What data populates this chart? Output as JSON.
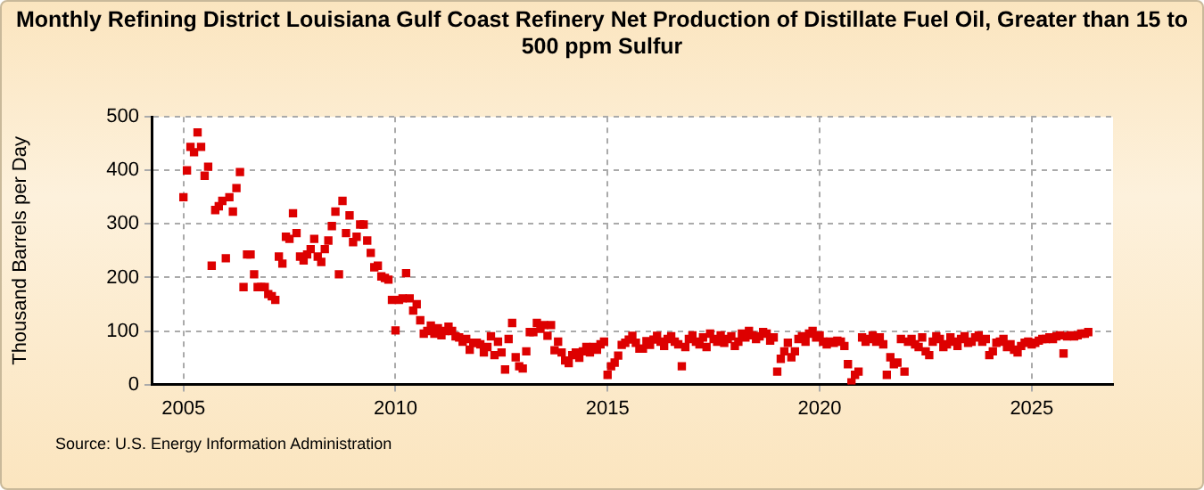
{
  "chart_data": {
    "type": "scatter",
    "title": "Monthly Refining District Louisiana Gulf Coast Refinery Net Production of Distillate Fuel Oil, Greater than 15 to 500 ppm Sulfur",
    "ylabel": "Thousand Barrels per Day",
    "annotations": [
      "Source: U.S. Energy Information Administration"
    ],
    "x": [
      "2005-01",
      "2005-02",
      "2005-03",
      "2005-04",
      "2005-05",
      "2005-06",
      "2005-07",
      "2005-08",
      "2005-09",
      "2005-10",
      "2005-11",
      "2005-12",
      "2006-01",
      "2006-02",
      "2006-03",
      "2006-04",
      "2006-05",
      "2006-06",
      "2006-07",
      "2006-08",
      "2006-09",
      "2006-10",
      "2006-11",
      "2006-12",
      "2007-01",
      "2007-02",
      "2007-03",
      "2007-04",
      "2007-05",
      "2007-06",
      "2007-07",
      "2007-08",
      "2007-09",
      "2007-10",
      "2007-11",
      "2007-12",
      "2008-01",
      "2008-02",
      "2008-03",
      "2008-04",
      "2008-05",
      "2008-06",
      "2008-07",
      "2008-08",
      "2008-09",
      "2008-10",
      "2008-11",
      "2008-12",
      "2009-01",
      "2009-02",
      "2009-03",
      "2009-04",
      "2009-05",
      "2009-06",
      "2009-07",
      "2009-08",
      "2009-09",
      "2009-10",
      "2009-11",
      "2009-12",
      "2010-01",
      "2010-02",
      "2010-03",
      "2010-04",
      "2010-05",
      "2010-06",
      "2010-07",
      "2010-08",
      "2010-09",
      "2010-10",
      "2010-11",
      "2010-12",
      "2011-01",
      "2011-02",
      "2011-03",
      "2011-04",
      "2011-05",
      "2011-06",
      "2011-07",
      "2011-08",
      "2011-09",
      "2011-10",
      "2011-11",
      "2011-12",
      "2012-01",
      "2012-02",
      "2012-03",
      "2012-04",
      "2012-05",
      "2012-06",
      "2012-07",
      "2012-08",
      "2012-09",
      "2012-10",
      "2012-11",
      "2012-12",
      "2013-01",
      "2013-02",
      "2013-03",
      "2013-04",
      "2013-05",
      "2013-06",
      "2013-07",
      "2013-08",
      "2013-09",
      "2013-10",
      "2013-11",
      "2013-12",
      "2014-01",
      "2014-02",
      "2014-03",
      "2014-04",
      "2014-05",
      "2014-06",
      "2014-07",
      "2014-08",
      "2014-09",
      "2014-10",
      "2014-11",
      "2014-12",
      "2015-01",
      "2015-02",
      "2015-03",
      "2015-04",
      "2015-05",
      "2015-06",
      "2015-07",
      "2015-08",
      "2015-09",
      "2015-10",
      "2015-11",
      "2015-12",
      "2016-01",
      "2016-02",
      "2016-03",
      "2016-04",
      "2016-05",
      "2016-06",
      "2016-07",
      "2016-08",
      "2016-09",
      "2016-10",
      "2016-11",
      "2016-12",
      "2017-01",
      "2017-02",
      "2017-03",
      "2017-04",
      "2017-05",
      "2017-06",
      "2017-07",
      "2017-08",
      "2017-09",
      "2017-10",
      "2017-11",
      "2017-12",
      "2018-01",
      "2018-02",
      "2018-03",
      "2018-04",
      "2018-05",
      "2018-06",
      "2018-07",
      "2018-08",
      "2018-09",
      "2018-10",
      "2018-11",
      "2018-12",
      "2019-01",
      "2019-02",
      "2019-03",
      "2019-04",
      "2019-05",
      "2019-06",
      "2019-07",
      "2019-08",
      "2019-09",
      "2019-10",
      "2019-11",
      "2019-12",
      "2020-01",
      "2020-02",
      "2020-03",
      "2020-04",
      "2020-05",
      "2020-06",
      "2020-07",
      "2020-08",
      "2020-09",
      "2020-10",
      "2020-11",
      "2020-12",
      "2021-01",
      "2021-02",
      "2021-03",
      "2021-04",
      "2021-05",
      "2021-06",
      "2021-07",
      "2021-08",
      "2021-09",
      "2021-10",
      "2021-11",
      "2021-12",
      "2022-01",
      "2022-02",
      "2022-03",
      "2022-04",
      "2022-05",
      "2022-06",
      "2022-07",
      "2022-08",
      "2022-09",
      "2022-10",
      "2022-11",
      "2022-12",
      "2023-01",
      "2023-02",
      "2023-03",
      "2023-04",
      "2023-05",
      "2023-06",
      "2023-07",
      "2023-08",
      "2023-09",
      "2023-10",
      "2023-11",
      "2023-12",
      "2024-01",
      "2024-02",
      "2024-03",
      "2024-04",
      "2024-05",
      "2024-06",
      "2024-07",
      "2024-08",
      "2024-09",
      "2024-10",
      "2024-11",
      "2024-12",
      "2025-01",
      "2025-02",
      "2025-03",
      "2025-04",
      "2025-05",
      "2025-06",
      "2025-07",
      "2025-08",
      "2025-09",
      "2025-10",
      "2025-11",
      "2025-12",
      "2026-01",
      "2026-02",
      "2026-03",
      "2026-04",
      "2026-05"
    ],
    "series": [
      {
        "color": "#dd0000",
        "values": [
          350,
          400,
          444,
          434,
          471,
          444,
          390,
          407,
          222,
          326,
          333,
          343,
          236,
          350,
          323,
          367,
          397,
          182,
          243,
          243,
          206,
          182,
          182,
          182,
          169,
          165,
          158,
          239,
          226,
          276,
          272,
          320,
          283,
          239,
          232,
          243,
          253,
          272,
          239,
          229,
          253,
          269,
          296,
          323,
          206,
          343,
          283,
          316,
          266,
          276,
          299,
          299,
          269,
          246,
          219,
          222,
          202,
          199,
          196,
          158,
          101,
          158,
          161,
          208,
          161,
          138,
          150,
          120,
          95,
          100,
          110,
          95,
          105,
          92,
          100,
          108,
          100,
          90,
          88,
          80,
          85,
          65,
          78,
          78,
          75,
          60,
          70,
          90,
          55,
          80,
          60,
          28,
          85,
          115,
          51,
          34,
          30,
          62,
          98,
          98,
          115,
          104,
          111,
          91,
          111,
          64,
          80,
          60,
          45,
          40,
          55,
          60,
          50,
          62,
          70,
          60,
          70,
          65,
          75,
          80,
          18,
          34,
          41,
          54,
          74,
          78,
          84,
          91,
          78,
          67,
          67,
          81,
          74,
          84,
          91,
          80,
          72,
          85,
          90,
          80,
          75,
          34,
          70,
          85,
          92,
          80,
          75,
          88,
          70,
          95,
          85,
          80,
          92,
          78,
          85,
          90,
          72,
          80,
          95,
          88,
          100,
          92,
          85,
          90,
          98,
          95,
          82,
          88,
          24,
          48,
          62,
          78,
          51,
          62,
          85,
          90,
          80,
          95,
          100,
          88,
          92,
          80,
          75,
          80,
          78,
          82,
          80,
          72,
          38,
          4,
          18,
          24,
          88,
          80,
          85,
          92,
          80,
          88,
          75,
          18,
          51,
          38,
          41,
          85,
          24,
          80,
          85,
          75,
          70,
          88,
          62,
          55,
          80,
          90,
          85,
          70,
          75,
          88,
          80,
          72,
          85,
          90,
          78,
          80,
          88,
          92,
          80,
          85,
          55,
          62,
          78,
          80,
          85,
          70,
          75,
          65,
          60,
          72,
          78,
          80,
          75,
          78,
          82,
          85,
          85,
          88,
          85,
          90,
          92,
          58,
          90,
          92,
          90,
          92,
          95,
          95,
          98
        ]
      }
    ],
    "xlim": [
      "2004-04",
      "2026-12"
    ],
    "xticks": [
      {
        "value": "2005",
        "label": "2005"
      },
      {
        "value": "2010",
        "label": "2010"
      },
      {
        "value": "2015",
        "label": "2015"
      },
      {
        "value": "2020",
        "label": "2020"
      },
      {
        "value": "2025",
        "label": "2025"
      }
    ],
    "ylim": [
      0,
      500
    ],
    "yticks": [
      0,
      100,
      200,
      300,
      400,
      500
    ],
    "grid": true,
    "marker": "square"
  }
}
